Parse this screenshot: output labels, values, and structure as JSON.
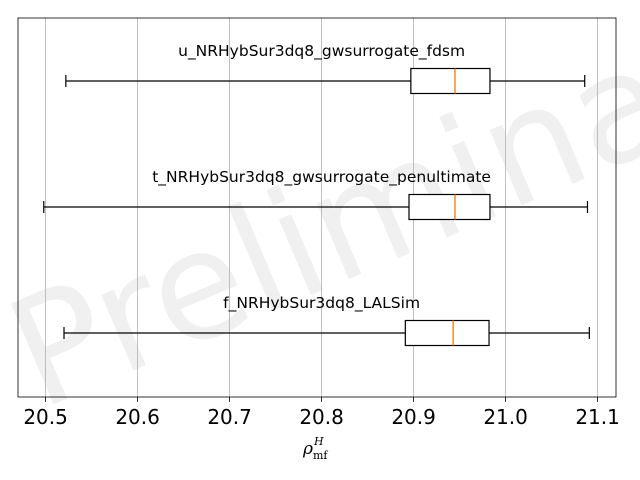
{
  "watermark": "Preliminary",
  "chart_data": {
    "type": "boxplot",
    "orientation": "horizontal",
    "xlim": [
      20.47,
      21.12
    ],
    "xticks": [
      20.5,
      20.6,
      20.7,
      20.8,
      20.9,
      21.0,
      21.1
    ],
    "xtick_labels": [
      "20.5",
      "20.6",
      "20.7",
      "20.8",
      "20.9",
      "21.0",
      "21.1"
    ],
    "xlabel": {
      "symbol": "ρ",
      "superscript": "H",
      "subscript": "mf"
    },
    "grid": "vertical",
    "series": [
      {
        "name": "u_NRHybSur3dq8_gwsurrogate_fdsm",
        "whisker_low": 20.522,
        "q1": 20.897,
        "median": 20.945,
        "q3": 20.983,
        "whisker_high": 21.086
      },
      {
        "name": "t_NRHybSur3dq8_gwsurrogate_penultimate",
        "whisker_low": 20.498,
        "q1": 20.895,
        "median": 20.945,
        "q3": 20.983,
        "whisker_high": 21.089
      },
      {
        "name": "f_NRHybSur3dq8_LALSim",
        "whisker_low": 20.52,
        "q1": 20.891,
        "median": 20.943,
        "q3": 20.982,
        "whisker_high": 21.091
      }
    ],
    "colors": {
      "box": "#000000",
      "median": "#ff7f0e",
      "grid": "#b0b0b0",
      "frame": "#000000"
    }
  }
}
